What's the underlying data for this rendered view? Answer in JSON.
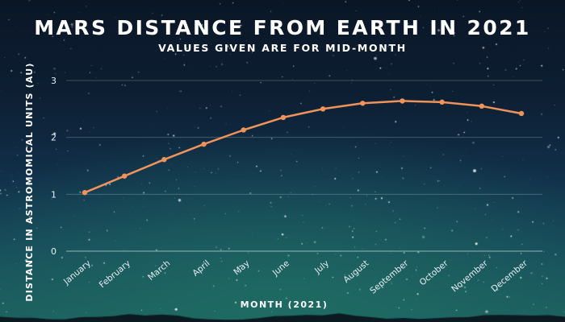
{
  "chart_data": {
    "type": "line",
    "title": "MARS DISTANCE FROM EARTH IN 2021",
    "subtitle": "VALUES GIVEN ARE FOR MID-MONTH",
    "xlabel": "MONTH (2021)",
    "ylabel": "DISTANCE IN ASTROMOMICAL UNITS (AU)",
    "categories": [
      "January",
      "February",
      "March",
      "April",
      "May",
      "June",
      "July",
      "August",
      "September",
      "October",
      "November",
      "December"
    ],
    "series": [
      {
        "values": [
          1.03,
          1.32,
          1.61,
          1.88,
          2.13,
          2.35,
          2.5,
          2.6,
          2.64,
          2.62,
          2.55,
          2.42
        ]
      }
    ],
    "ylim": [
      0,
      3
    ],
    "yticks": [
      "0",
      "1",
      "2",
      "3"
    ],
    "grid": true,
    "line_color": "#f0935a"
  }
}
